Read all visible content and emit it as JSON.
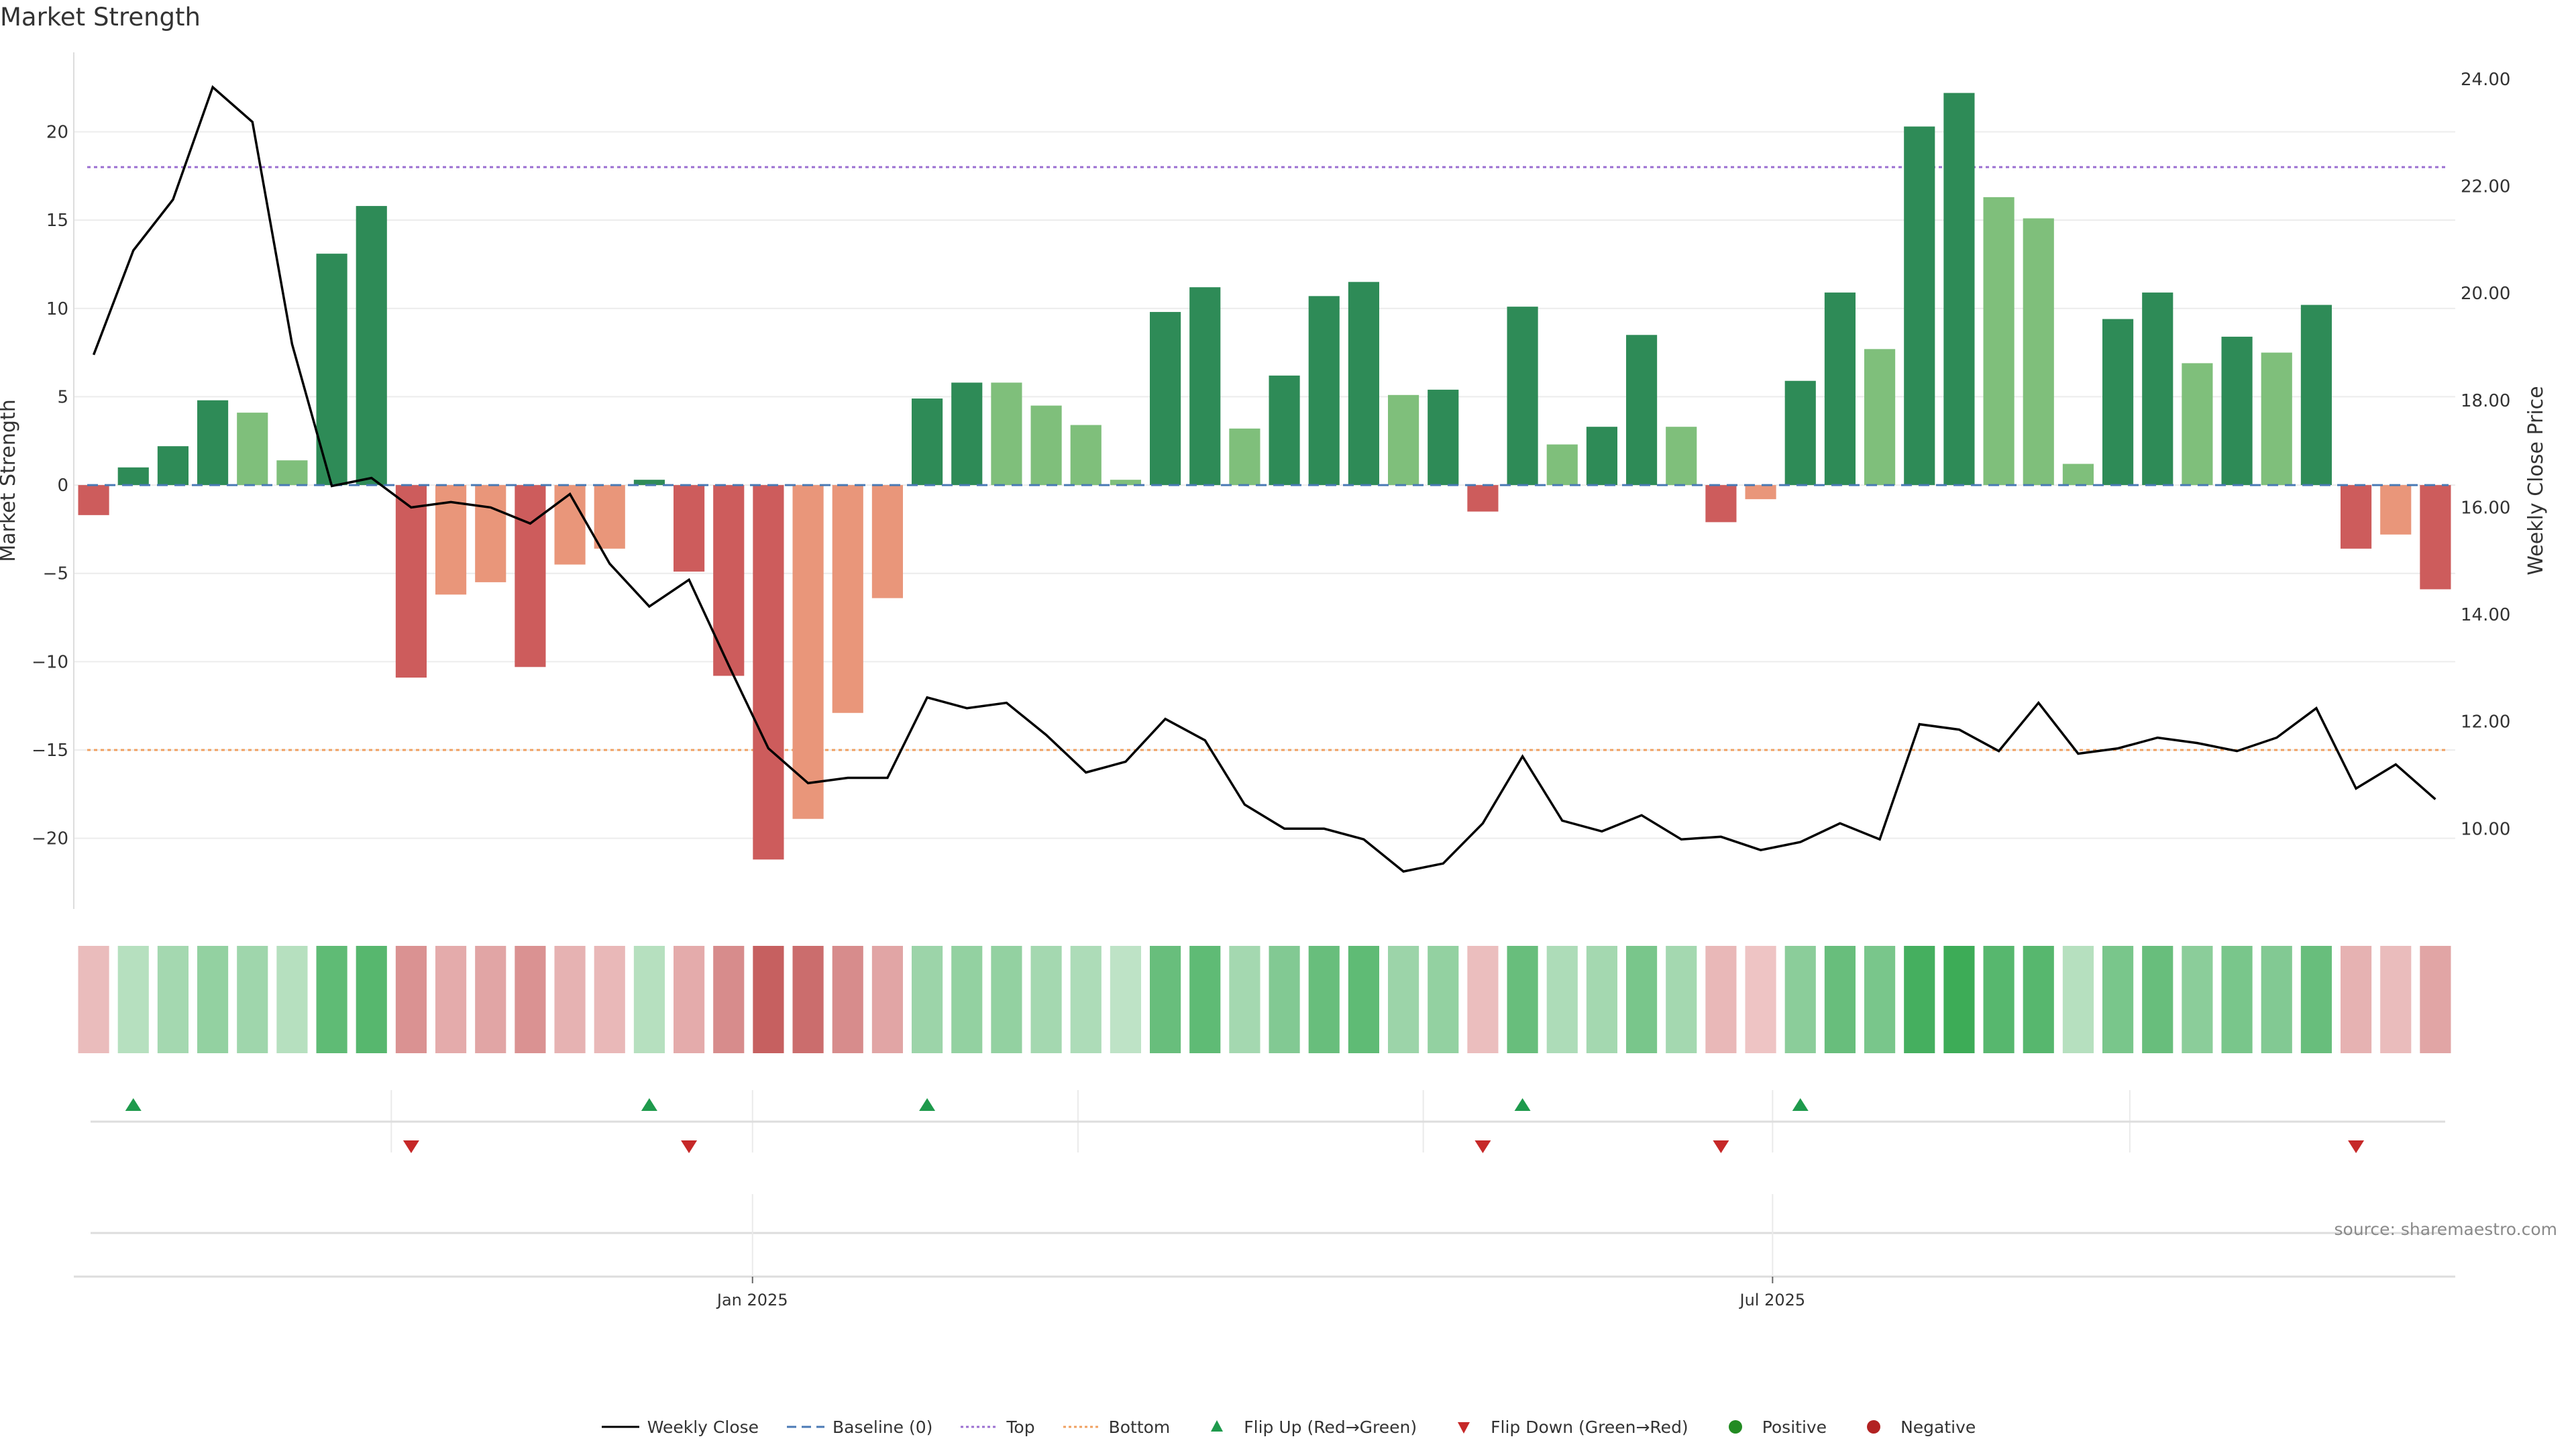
{
  "chart_data": {
    "type": "bar",
    "title": "Market Strength",
    "ylabel_left": "Market Strength",
    "ylabel_right": "Weekly Close Price",
    "ylim_left": [
      -24,
      24.5
    ],
    "ylim_right": [
      8.5,
      24.5
    ],
    "yticks_left": [
      -20,
      -15,
      -10,
      -5,
      0,
      5,
      10,
      15,
      20
    ],
    "yticks_right": [
      "10.00",
      "12.00",
      "14.00",
      "16.00",
      "18.00",
      "20.00",
      "22.00",
      "24.00"
    ],
    "top_threshold": 18,
    "bottom_threshold": -15,
    "x_tick_labels": [
      {
        "label": "Jan 2025",
        "bar_index": 16.6
      },
      {
        "label": "Jul 2025",
        "bar_index": 42.3
      }
    ],
    "bar_values": [
      -1.7,
      1.0,
      2.2,
      4.8,
      4.1,
      1.4,
      13.1,
      15.8,
      -10.9,
      -6.2,
      -5.5,
      -10.3,
      -4.5,
      -3.6,
      0.3,
      -4.9,
      -10.8,
      -21.2,
      -18.9,
      -12.9,
      -6.4,
      4.9,
      5.8,
      5.8,
      4.5,
      3.4,
      0.3,
      9.8,
      11.2,
      3.2,
      6.2,
      10.7,
      11.5,
      5.1,
      5.4,
      -1.5,
      10.1,
      2.3,
      3.3,
      8.5,
      3.3,
      -2.1,
      -0.8,
      5.9,
      10.9,
      7.7,
      20.3,
      22.2,
      16.3,
      15.1,
      1.2,
      9.4,
      10.9,
      6.9,
      8.4,
      7.5,
      10.2,
      -3.6,
      -2.8,
      -5.9
    ],
    "bar_intensity": [
      "strong",
      "strong",
      "strong",
      "strong",
      "weak",
      "weak",
      "strong",
      "strong",
      "strong",
      "weak",
      "weak",
      "strong",
      "weak",
      "weak",
      "strong",
      "strong",
      "strong",
      "strong",
      "weak",
      "weak",
      "weak",
      "strong",
      "strong",
      "weak",
      "weak",
      "weak",
      "weak",
      "strong",
      "strong",
      "weak",
      "strong",
      "strong",
      "strong",
      "weak",
      "strong",
      "strong",
      "strong",
      "weak",
      "strong",
      "strong",
      "weak",
      "strong",
      "weak",
      "strong",
      "strong",
      "weak",
      "strong",
      "strong",
      "weak",
      "weak",
      "weak",
      "strong",
      "strong",
      "weak",
      "strong",
      "weak",
      "strong",
      "strong",
      "weak",
      "strong"
    ],
    "weekly_close": [
      18.85,
      20.8,
      21.75,
      23.85,
      23.2,
      19.05,
      16.4,
      16.55,
      16.0,
      16.1,
      16.0,
      15.7,
      16.25,
      14.95,
      14.15,
      14.65,
      13.05,
      11.5,
      10.85,
      10.95,
      10.95,
      12.45,
      12.25,
      12.35,
      11.75,
      11.05,
      11.25,
      12.05,
      11.65,
      10.45,
      10.0,
      10.0,
      9.8,
      9.2,
      9.35,
      10.1,
      11.35,
      10.15,
      9.95,
      10.25,
      9.8,
      9.85,
      9.6,
      9.75,
      10.1,
      9.8,
      11.95,
      11.85,
      11.45,
      12.35,
      11.4,
      11.5,
      11.7,
      11.6,
      11.45,
      11.7,
      12.25,
      10.75,
      11.2,
      10.55
    ],
    "flip_up_indices": [
      1,
      14,
      21,
      36,
      43
    ],
    "flip_down_indices": [
      8,
      15,
      35,
      41,
      57
    ],
    "heat_strip": [
      0.22,
      0.25,
      0.35,
      0.45,
      0.38,
      0.25,
      0.75,
      0.8,
      0.55,
      0.35,
      0.4,
      0.55,
      0.3,
      0.25,
      0.25,
      0.35,
      0.6,
      0.95,
      0.85,
      0.6,
      0.4,
      0.4,
      0.45,
      0.45,
      0.35,
      0.3,
      0.2,
      0.7,
      0.75,
      0.35,
      0.55,
      0.7,
      0.75,
      0.4,
      0.45,
      0.2,
      0.7,
      0.3,
      0.35,
      0.6,
      0.35,
      0.25,
      0.15,
      0.5,
      0.7,
      0.6,
      0.9,
      0.95,
      0.8,
      0.8,
      0.25,
      0.6,
      0.7,
      0.5,
      0.6,
      0.55,
      0.7,
      0.3,
      0.22,
      0.4
    ],
    "colors": {
      "strong_positive": "#2e8b57",
      "weak_positive": "#7fbf7b",
      "strong_negative": "#cd5c5c",
      "weak_negative": "#e9967a",
      "close_line": "#000000",
      "baseline": "#4a7ab5",
      "top": "#9b6fd1",
      "bottom": "#f0a060",
      "flip_up": "#1e9a4c",
      "flip_down": "#c62828",
      "positive_dot": "#228b22",
      "negative_dot": "#b22222"
    }
  },
  "source_note": "source: sharemaestro.com",
  "legend": {
    "weekly_close": "Weekly Close",
    "baseline": "Baseline (0)",
    "top": "Top",
    "bottom": "Bottom",
    "flip_up": "Flip Up (Red→Green)",
    "flip_down": "Flip Down (Green→Red)",
    "positive": "Positive",
    "negative": "Negative"
  }
}
